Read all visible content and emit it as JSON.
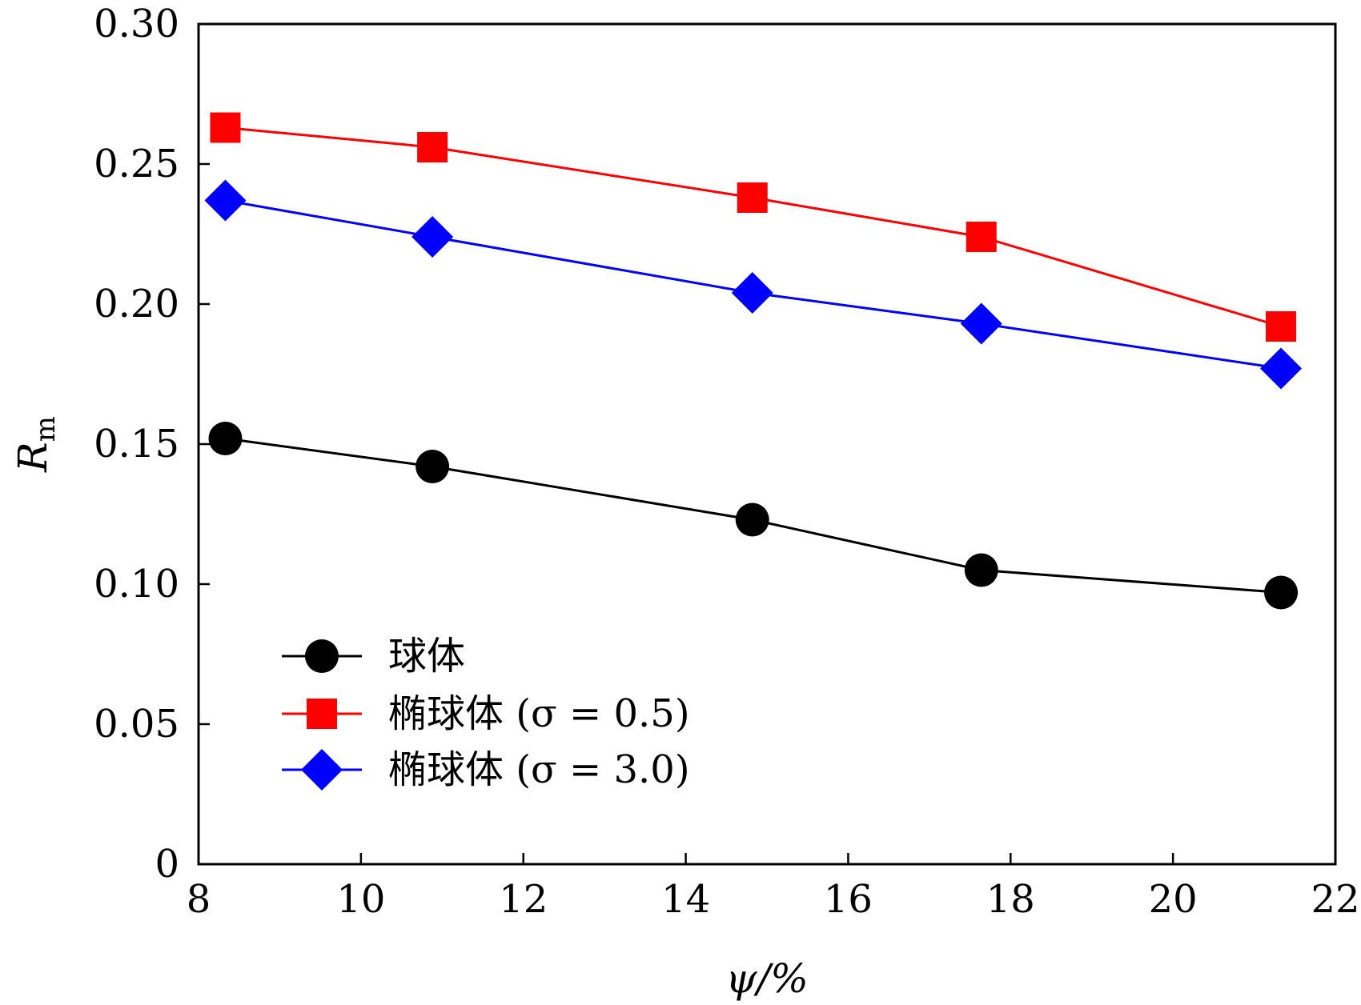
{
  "chart_data": {
    "type": "line",
    "xlabel": "ψ/%",
    "ylabel": "R",
    "ylabel_subscript": "m",
    "xlim": [
      8,
      22
    ],
    "ylim": [
      0,
      0.3
    ],
    "x_ticks": [
      "8",
      "10",
      "12",
      "14",
      "16",
      "18",
      "20",
      "22"
    ],
    "y_ticks": [
      "0",
      "0.05",
      "0.10",
      "0.15",
      "0.20",
      "0.25",
      "0.30"
    ],
    "grid": false,
    "legend_position": "lower-left",
    "x": [
      8.33,
      10.88,
      14.82,
      17.64,
      21.33
    ],
    "series": [
      {
        "name": "球体",
        "color": "#000000",
        "marker": "circle",
        "values": [
          0.152,
          0.142,
          0.123,
          0.105,
          0.097
        ]
      },
      {
        "name": "椭球体 (σ = 0.5)",
        "color": "#ff0000",
        "marker": "square",
        "values": [
          0.263,
          0.256,
          0.238,
          0.224,
          0.192
        ]
      },
      {
        "name": "椭球体 (σ = 3.0)",
        "color": "#0000ff",
        "marker": "diamond",
        "values": [
          0.237,
          0.224,
          0.204,
          0.193,
          0.177
        ]
      }
    ]
  }
}
